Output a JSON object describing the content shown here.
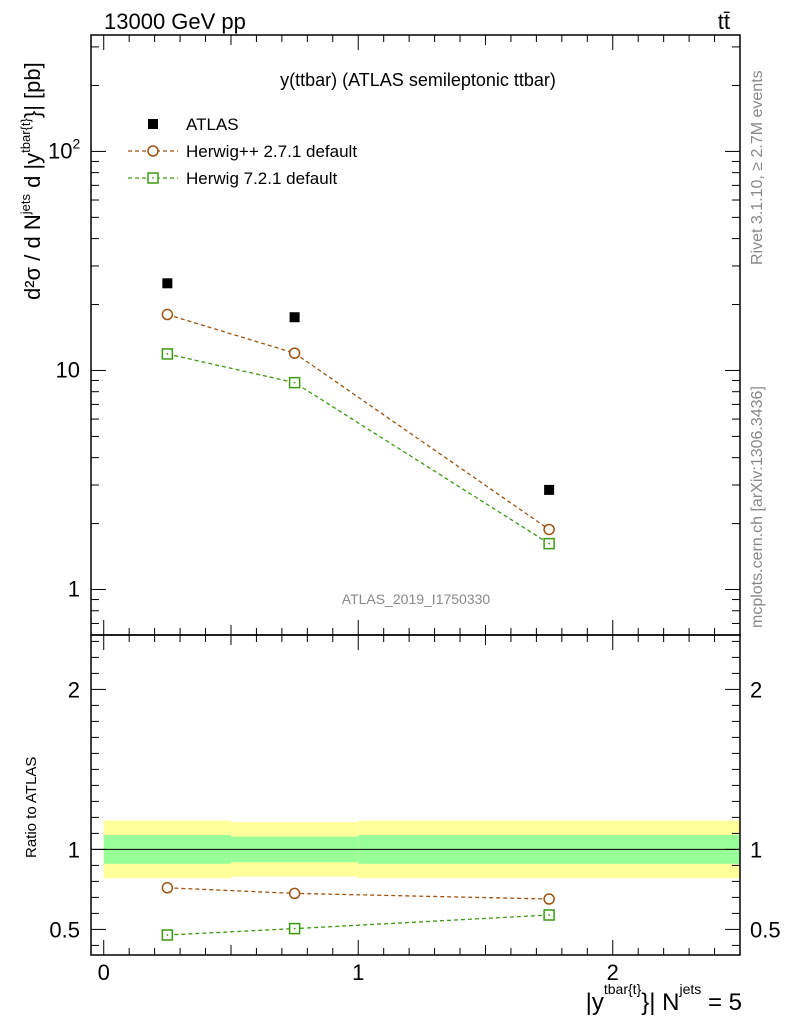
{
  "header": {
    "left_label": "13000 GeV pp",
    "right_label": "tt̄"
  },
  "side_labels": {
    "rivet": "Rivet 3.1.10, ≥ 2.7M events",
    "mcplots": "mcplots.cern.ch [arXiv:1306.3436]"
  },
  "chart_data": [
    {
      "type": "scatter",
      "title": "y(ttbar) (ATLAS semileptonic ttbar)",
      "watermark": "ATLAS_2019_I1750330",
      "ylabel": {
        "main": "d²σ / d N",
        "sup1": "jets",
        "mid": " d |y",
        "sup2": "tbar{t}",
        "end": "}| [pb]"
      },
      "yscale": "log",
      "ylim": [
        0.62,
        340
      ],
      "xlim": [
        -0.05,
        2.5
      ],
      "ytick_labels": [
        {
          "value": 1,
          "label": "1"
        },
        {
          "value": 10,
          "label": "10"
        },
        {
          "value": 100,
          "label": "10",
          "sup": "2"
        }
      ],
      "legend_position": "top-left",
      "series": [
        {
          "name": "ATLAS",
          "marker": "filled-square",
          "color": "#000000",
          "x": [
            0.25,
            0.75,
            1.75
          ],
          "y": [
            25.0,
            17.5,
            2.85
          ]
        },
        {
          "name": "Herwig++ 2.7.1 default",
          "marker": "open-circle",
          "color": "#a0520e",
          "x": [
            0.25,
            0.75,
            1.75
          ],
          "y": [
            18.0,
            12.0,
            1.88
          ]
        },
        {
          "name": "Herwig 7.2.1 default",
          "marker": "open-square",
          "color": "#3a9a10",
          "x": [
            0.25,
            0.75,
            1.75
          ],
          "y": [
            11.9,
            8.8,
            1.62
          ]
        }
      ]
    },
    {
      "type": "scatter",
      "ylabel": "Ratio to ATLAS",
      "xlabel": {
        "main": "|y",
        "sup1": "tbar{t}",
        "mid": "}| N",
        "sup2": "jets",
        "end": " = 5"
      },
      "xlim": [
        -0.05,
        2.5
      ],
      "ylim": [
        0.34,
        2.34
      ],
      "xtick_labels": [
        {
          "value": 0,
          "label": "0"
        },
        {
          "value": 1,
          "label": "1"
        },
        {
          "value": 2,
          "label": "2"
        }
      ],
      "ytick_labels": [
        {
          "value": 0.5,
          "label": "0.5"
        },
        {
          "value": 1,
          "label": "1"
        },
        {
          "value": 2,
          "label": "2"
        }
      ],
      "bins": [
        [
          0,
          0.5
        ],
        [
          0.5,
          1
        ],
        [
          1,
          2.5
        ]
      ],
      "bands": [
        {
          "name": "total uncertainty",
          "color": "#ffff99",
          "lo": [
            0.82,
            0.83,
            0.82
          ],
          "hi": [
            1.18,
            1.17,
            1.18
          ]
        },
        {
          "name": "statistical uncertainty",
          "color": "#99ff99",
          "lo": [
            0.91,
            0.92,
            0.91
          ],
          "hi": [
            1.09,
            1.08,
            1.09
          ]
        }
      ],
      "reference_line": 1,
      "series": [
        {
          "name": "Herwig++ 2.7.1 default",
          "marker": "open-circle",
          "color": "#a0520e",
          "x": [
            0.25,
            0.75,
            1.75
          ],
          "y": [
            0.76,
            0.725,
            0.69
          ]
        },
        {
          "name": "Herwig 7.2.1 default",
          "marker": "open-square",
          "color": "#3a9a10",
          "x": [
            0.25,
            0.75,
            1.75
          ],
          "y": [
            0.465,
            0.505,
            0.59
          ]
        }
      ]
    }
  ]
}
